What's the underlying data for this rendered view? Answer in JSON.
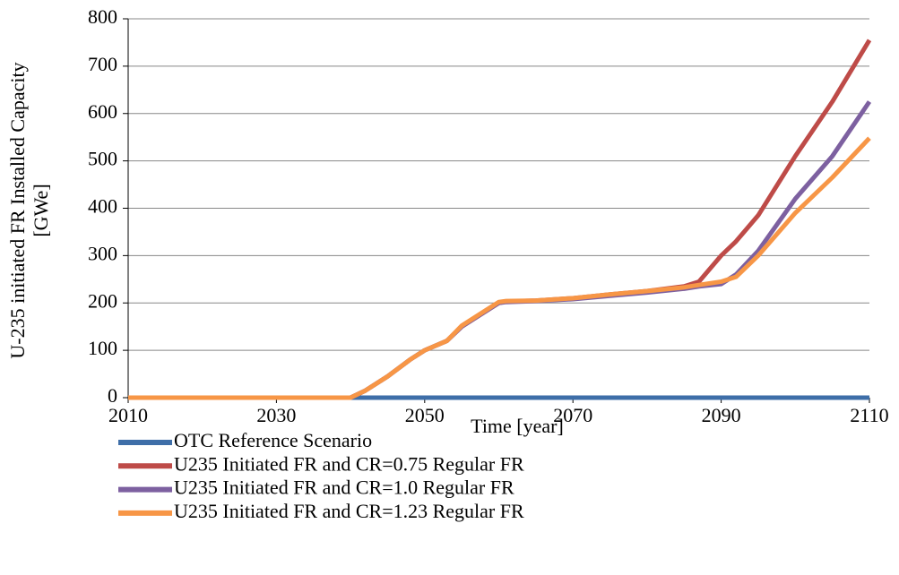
{
  "chart_data": {
    "type": "line",
    "xlabel": "Time [year]",
    "ylabel": [
      "U-235 initiated FR Installed Capacity",
      "[GWe]"
    ],
    "x": [
      2010,
      2040,
      2042,
      2045,
      2048,
      2050,
      2053,
      2055,
      2058,
      2060,
      2061,
      2065,
      2070,
      2075,
      2080,
      2085,
      2087,
      2090,
      2092,
      2095,
      2100,
      2105,
      2110
    ],
    "series": [
      {
        "name": "OTC Reference Scenario",
        "color": "#3e6ea8",
        "values": [
          0,
          0,
          0,
          0,
          0,
          0,
          0,
          0,
          0,
          0,
          0,
          0,
          0,
          0,
          0,
          0,
          0,
          0,
          0,
          0,
          0,
          0,
          0
        ]
      },
      {
        "name": "U235 Initiated FR and CR=0.75 Regular FR",
        "color": "#be4b48",
        "values": [
          0,
          0,
          15,
          45,
          80,
          100,
          120,
          150,
          180,
          200,
          203,
          205,
          210,
          218,
          225,
          235,
          245,
          300,
          330,
          385,
          510,
          625,
          755
        ]
      },
      {
        "name": "U235 Initiated FR and CR=1.0 Regular FR",
        "color": "#7d60a0",
        "values": [
          0,
          0,
          15,
          45,
          80,
          100,
          120,
          150,
          180,
          200,
          202,
          204,
          208,
          215,
          222,
          230,
          235,
          240,
          260,
          310,
          420,
          510,
          625
        ]
      },
      {
        "name": "U235 Initiated FR and CR=1.23 Regular FR",
        "color": "#f79646",
        "values": [
          0,
          0,
          15,
          45,
          80,
          100,
          120,
          152,
          182,
          202,
          204,
          205,
          210,
          218,
          225,
          233,
          238,
          245,
          255,
          300,
          390,
          465,
          548
        ]
      }
    ],
    "xlim": [
      2010,
      2110
    ],
    "xticks": [
      2010,
      2030,
      2050,
      2070,
      2090,
      2110
    ],
    "ylim": [
      0,
      800
    ],
    "yticks": [
      0,
      100,
      200,
      300,
      400,
      500,
      600,
      700,
      800
    ],
    "grid": true,
    "legend": "bottom"
  }
}
